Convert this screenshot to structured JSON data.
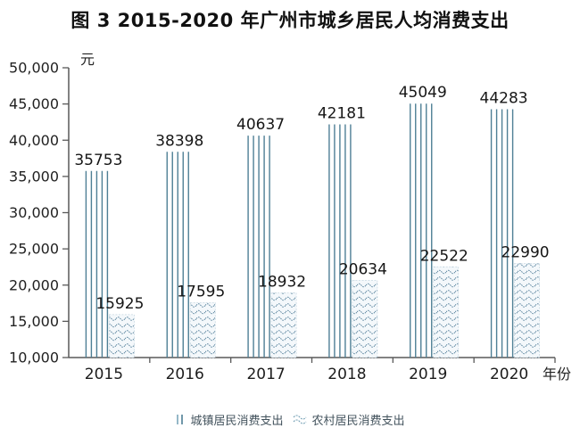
{
  "title": "图 3 2015-2020 年广州市城乡居民人均消费支出",
  "chart_data": {
    "type": "bar",
    "title": "图 3 2015-2020 年广州市城乡居民人均消费支出",
    "categories": [
      "2015",
      "2016",
      "2017",
      "2018",
      "2019",
      "2020"
    ],
    "series": [
      {
        "name": "城镇居民消费支出",
        "pattern": "vertical-lines",
        "values": [
          35753,
          38398,
          40637,
          42181,
          45049,
          44283
        ]
      },
      {
        "name": "农村居民消费支出",
        "pattern": "waves",
        "values": [
          15925,
          17595,
          18932,
          20634,
          22522,
          22990
        ]
      }
    ],
    "ylabel": "元",
    "xlabel": "年份",
    "ylim": [
      10000,
      50000
    ],
    "ytick_step": 5000,
    "ytick_labels": [
      "10,000",
      "15,000",
      "20,000",
      "25,000",
      "30,000",
      "35,000",
      "40,000",
      "45,000",
      "50,000"
    ],
    "value_labels_shown": true,
    "grid": false,
    "legend_position": "bottom",
    "colors": {
      "bar_line": "#4e7f95",
      "wave_line": "#54809b",
      "rural_fill": "#f4f8fb",
      "rural_border": "#c3d5e0",
      "axis": "#595959",
      "text": "#1c1c1c"
    }
  },
  "legend": {
    "items": [
      {
        "label": "城镇居民消费支出",
        "marker": "vertical-lines-icon"
      },
      {
        "label": "农村居民消费支出",
        "marker": "waves-icon"
      }
    ]
  }
}
